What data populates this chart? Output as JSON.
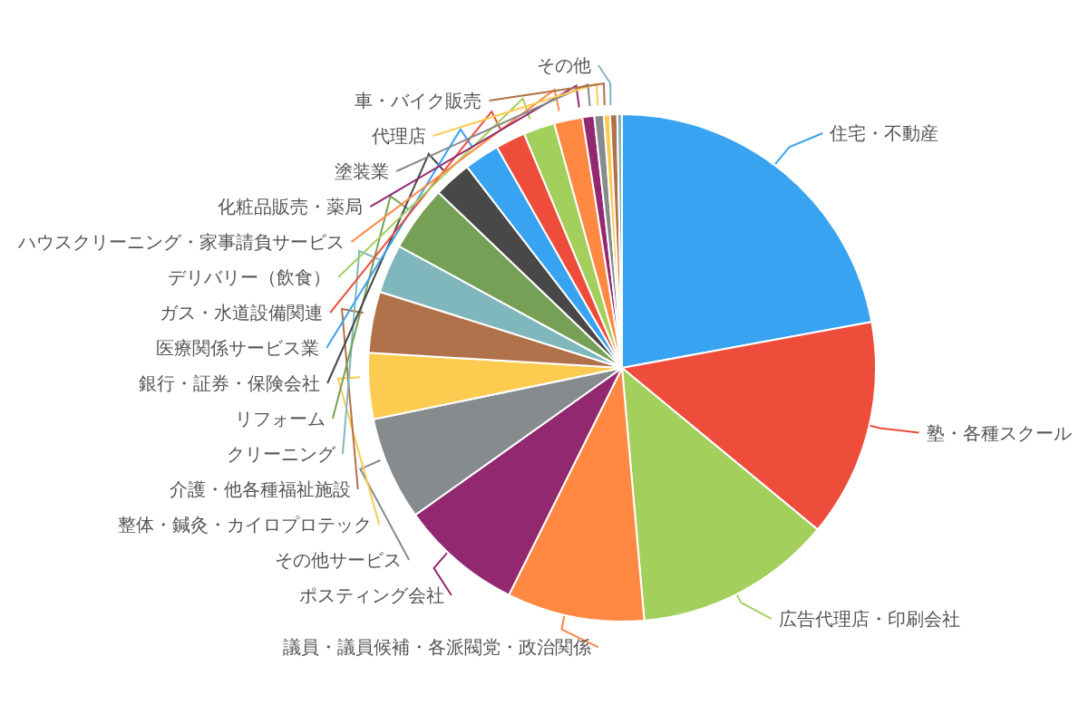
{
  "chart_data": {
    "type": "pie",
    "categories": [
      "住宅・不動産",
      "塾・各種スクール",
      "広告代理店・印刷会社",
      "議員・議員候補・各派閥党・政治関係",
      "ポスティング会社",
      "その他サービス",
      "整体・鍼灸・カイロプロテック",
      "介護・他各種福祉施設",
      "クリーニング",
      "リフォーム",
      "銀行・証券・保険会社",
      "医療関係サービス業",
      "ガス・水道設備関連",
      "デリバリー（飲食）",
      "ハウスクリーニング・家事請負サービス",
      "化粧品販売・薬局",
      "塗装業",
      "代理店",
      "車・バイク販売",
      "その他"
    ],
    "values": [
      22.1,
      13.9,
      12.6,
      8.75,
      7.8,
      6.6,
      4.2,
      3.9,
      3.1,
      4.2,
      2.4,
      2.25,
      1.9,
      2.0,
      1.8,
      0.75,
      0.6,
      0.4,
      0.45,
      0.3
    ],
    "colors": [
      "#38a3f0",
      "#ee4d3b",
      "#a3cf5c",
      "#ff8843",
      "#922870",
      "#868b8d",
      "#fdcb4f",
      "#b1714a",
      "#7fb7bd",
      "#76a055",
      "#484848",
      "#38a3f0",
      "#ee4d3b",
      "#a3cf5c",
      "#ff8843",
      "#922870",
      "#868b8d",
      "#fdcb4f",
      "#b1714a",
      "#7fb7bd"
    ],
    "legend": false
  }
}
